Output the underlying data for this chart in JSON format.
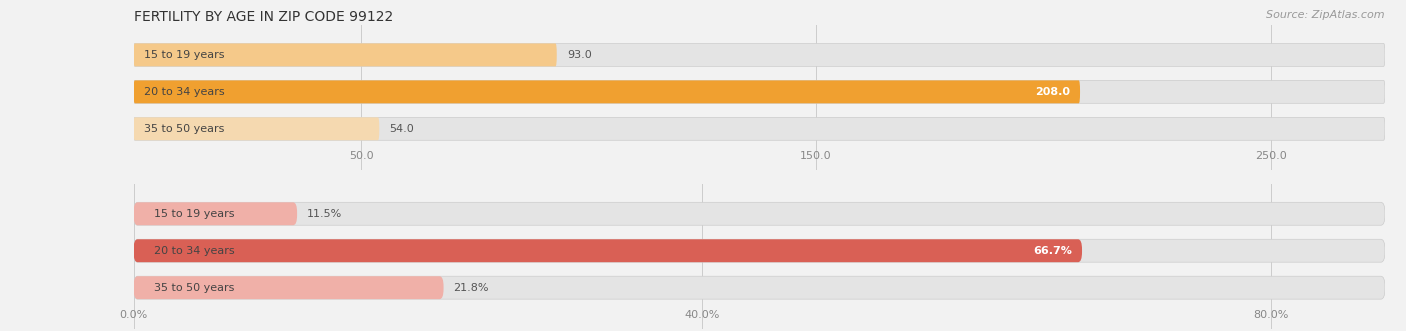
{
  "title": "FERTILITY BY AGE IN ZIP CODE 99122",
  "source": "Source: ZipAtlas.com",
  "top_chart": {
    "categories": [
      "15 to 19 years",
      "20 to 34 years",
      "35 to 50 years"
    ],
    "values": [
      93.0,
      208.0,
      54.0
    ],
    "bar_colors": [
      "#f5c98a",
      "#f0a030",
      "#f5d9b0"
    ],
    "label_colors": [
      "#666666",
      "#ffffff",
      "#666666"
    ],
    "xlim": [
      0,
      275
    ],
    "xticks": [
      50.0,
      150.0,
      250.0
    ],
    "xtick_labels": [
      "50.0",
      "150.0",
      "250.0"
    ],
    "value_labels": [
      "93.0",
      "208.0",
      "54.0"
    ],
    "value_inside": [
      false,
      true,
      false
    ]
  },
  "bottom_chart": {
    "categories": [
      "15 to 19 years",
      "20 to 34 years",
      "35 to 50 years"
    ],
    "values": [
      11.5,
      66.7,
      21.8
    ],
    "bar_colors": [
      "#f0b0a8",
      "#d96055",
      "#f0b0a8"
    ],
    "label_colors": [
      "#666666",
      "#ffffff",
      "#666666"
    ],
    "xlim": [
      0,
      88
    ],
    "xticks": [
      0.0,
      40.0,
      80.0
    ],
    "xtick_labels": [
      "0.0%",
      "40.0%",
      "80.0%"
    ],
    "value_labels": [
      "11.5%",
      "66.7%",
      "21.8%"
    ],
    "value_inside": [
      false,
      true,
      false
    ]
  },
  "fig_bg_color": "#f2f2f2",
  "bar_bg_color": "#e4e4e4",
  "bar_height": 0.62,
  "title_fontsize": 10,
  "label_fontsize": 8,
  "value_fontsize": 8,
  "tick_fontsize": 8,
  "source_fontsize": 8
}
